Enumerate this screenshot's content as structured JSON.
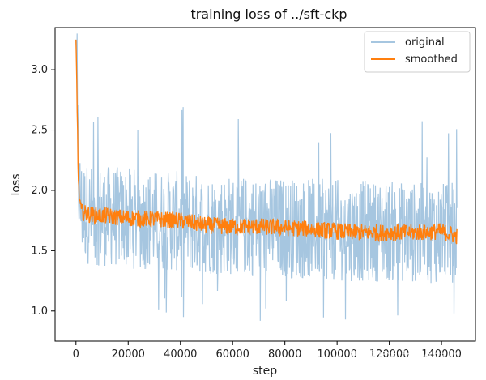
{
  "chart_data": {
    "type": "line",
    "title": "training loss of ../sft-ckp",
    "xlabel": "step",
    "ylabel": "loss",
    "xlim": [
      -8000,
      153000
    ],
    "ylim": [
      0.75,
      3.35
    ],
    "xticks": [
      0,
      20000,
      40000,
      60000,
      80000,
      100000,
      120000,
      140000
    ],
    "xtick_labels": [
      "0",
      "20000",
      "40000",
      "60000",
      "80000",
      "100000",
      "120000",
      "140000"
    ],
    "yticks": [
      1.0,
      1.5,
      2.0,
      2.5,
      3.0
    ],
    "ytick_labels": [
      "1.0",
      "1.5",
      "2.0",
      "2.5",
      "3.0"
    ],
    "grid": false,
    "legend_position": "top-right",
    "series": [
      {
        "name": "original",
        "color": "#a6c6e0",
        "note_values": "noisy raw loss, approx. 1.2–2.4 band with spikes to ~2.65 and dips to ~0.88",
        "start": 3.25,
        "x": [
          0,
          1000,
          2000,
          5000,
          10000,
          20000,
          30000,
          40000,
          50000,
          60000,
          70000,
          80000,
          90000,
          100000,
          110000,
          120000,
          130000,
          140000,
          146000
        ],
        "center": [
          3.25,
          2.05,
          1.85,
          1.8,
          1.79,
          1.77,
          1.75,
          1.74,
          1.72,
          1.71,
          1.7,
          1.69,
          1.68,
          1.67,
          1.66,
          1.66,
          1.65,
          1.65,
          1.64
        ],
        "spread": 0.42
      },
      {
        "name": "smoothed",
        "color": "#ff7f0e",
        "x": [
          0,
          1000,
          2000,
          5000,
          10000,
          20000,
          30000,
          40000,
          50000,
          60000,
          70000,
          80000,
          90000,
          100000,
          110000,
          120000,
          130000,
          140000,
          146000
        ],
        "y": [
          3.25,
          2.0,
          1.82,
          1.8,
          1.79,
          1.77,
          1.76,
          1.75,
          1.71,
          1.7,
          1.7,
          1.69,
          1.68,
          1.66,
          1.65,
          1.65,
          1.65,
          1.66,
          1.62
        ],
        "spread": 0.07
      }
    ]
  },
  "watermark": "知乎 @difonjohaiv"
}
